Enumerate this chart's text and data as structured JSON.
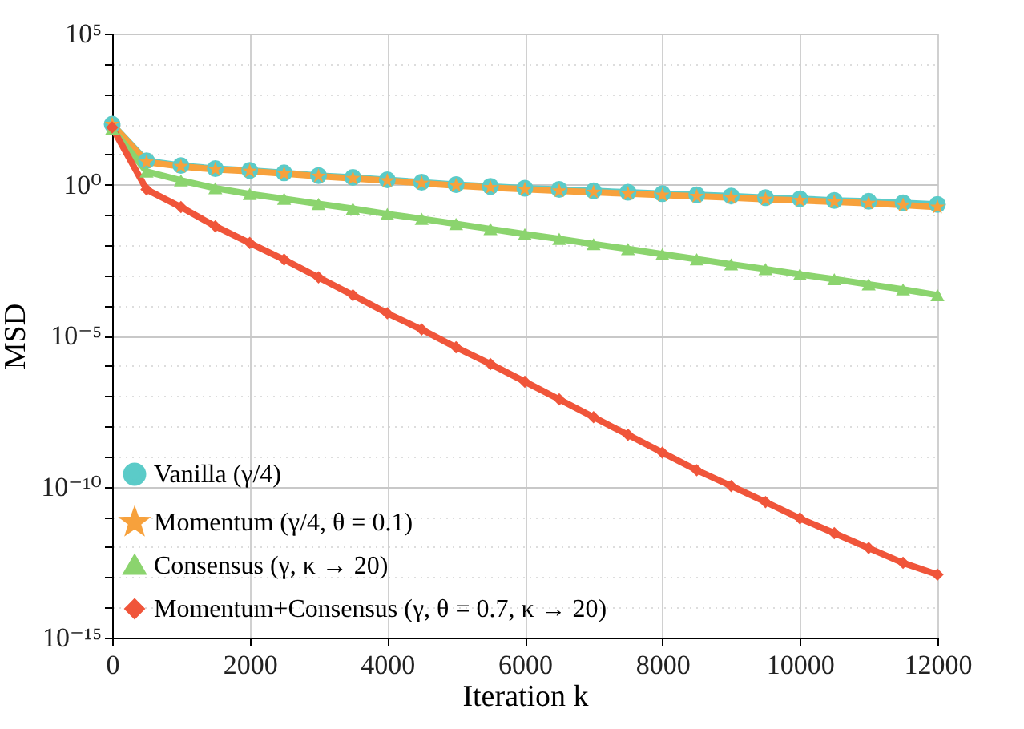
{
  "chart_data": {
    "type": "line",
    "xlabel": "Iteration k",
    "ylabel": "MSD",
    "log": "y",
    "grid": true,
    "legend": "bottom left",
    "line_style": "solid",
    "x": [
      0,
      500,
      1000,
      1500,
      2000,
      2500,
      3000,
      3500,
      4000,
      4500,
      5000,
      5500,
      6000,
      6500,
      7000,
      7500,
      8000,
      8500,
      9000,
      9500,
      10000,
      10500,
      11000,
      11500,
      12000
    ],
    "xlim": [
      0,
      12000
    ],
    "xticks": [
      0,
      2000,
      4000,
      6000,
      8000,
      10000,
      12000
    ],
    "ylim": [
      1e-15,
      100000
    ],
    "yticks": [
      {
        "value": 1e-15,
        "label": "10⁻¹⁵"
      },
      {
        "value": 1e-14,
        "label": null
      },
      {
        "value": 1e-13,
        "label": null
      },
      {
        "value": 1e-12,
        "label": null
      },
      {
        "value": 1e-11,
        "label": null
      },
      {
        "value": 1e-10,
        "label": "10⁻¹⁰"
      },
      {
        "value": 1e-09,
        "label": null
      },
      {
        "value": 1e-08,
        "label": null
      },
      {
        "value": 1e-07,
        "label": null
      },
      {
        "value": 1e-06,
        "label": null
      },
      {
        "value": 1e-05,
        "label": "10⁻⁵"
      },
      {
        "value": 0.0001,
        "label": null
      },
      {
        "value": 0.001,
        "label": null
      },
      {
        "value": 0.01,
        "label": null
      },
      {
        "value": 0.1,
        "label": null
      },
      {
        "value": 1,
        "label": "10⁰"
      },
      {
        "value": 10,
        "label": null
      },
      {
        "value": 100,
        "label": null
      },
      {
        "value": 1000,
        "label": null
      },
      {
        "value": 10000,
        "label": null
      },
      {
        "value": 100000,
        "label": "10⁵"
      }
    ],
    "series": [
      {
        "name": "Vanilla (γ/4)",
        "color": "#5bcbc8",
        "marker": "circle",
        "values": [
          100,
          6.2,
          4.3,
          3.4,
          2.95,
          2.45,
          2.0,
          1.74,
          1.45,
          1.2,
          1.0,
          0.87,
          0.76,
          0.69,
          0.62,
          0.56,
          0.5,
          0.46,
          0.42,
          0.37,
          0.34,
          0.3,
          0.28,
          0.25,
          0.22
        ]
      },
      {
        "name": "Momentum (γ/4, θ = 0.1)",
        "color": "#f7a13c",
        "marker": "star",
        "values": [
          100,
          5.6,
          4.0,
          3.2,
          2.8,
          2.3,
          1.9,
          1.6,
          1.35,
          1.12,
          0.93,
          0.8,
          0.7,
          0.62,
          0.56,
          0.5,
          0.45,
          0.41,
          0.37,
          0.33,
          0.3,
          0.27,
          0.24,
          0.21,
          0.18
        ]
      },
      {
        "name": "Consensus (γ, κ → 20)",
        "color": "#8bd46e",
        "marker": "triangle",
        "values": [
          71,
          2.7,
          1.38,
          0.76,
          0.49,
          0.34,
          0.23,
          0.16,
          0.107,
          0.074,
          0.05,
          0.034,
          0.023,
          0.016,
          0.0107,
          0.0074,
          0.005,
          0.0034,
          0.0023,
          0.0016,
          0.00107,
          0.00074,
          0.0005,
          0.00034,
          0.00022
        ]
      },
      {
        "name": "Momentum+Consensus (γ, θ = 0.7, κ → 20)",
        "color": "#f0553a",
        "marker": "diamond",
        "values": [
          79,
          0.69,
          0.18,
          0.042,
          0.0117,
          0.0033,
          0.00085,
          0.00022,
          5.5e-05,
          1.6e-05,
          4.1e-06,
          1.15e-06,
          3e-07,
          7.8e-08,
          2e-08,
          5.2e-09,
          1.35e-09,
          3.5e-10,
          1.05e-10,
          3.1e-11,
          8.9e-12,
          2.9e-12,
          9.3e-13,
          3e-13,
          1.23e-13
        ]
      }
    ]
  }
}
